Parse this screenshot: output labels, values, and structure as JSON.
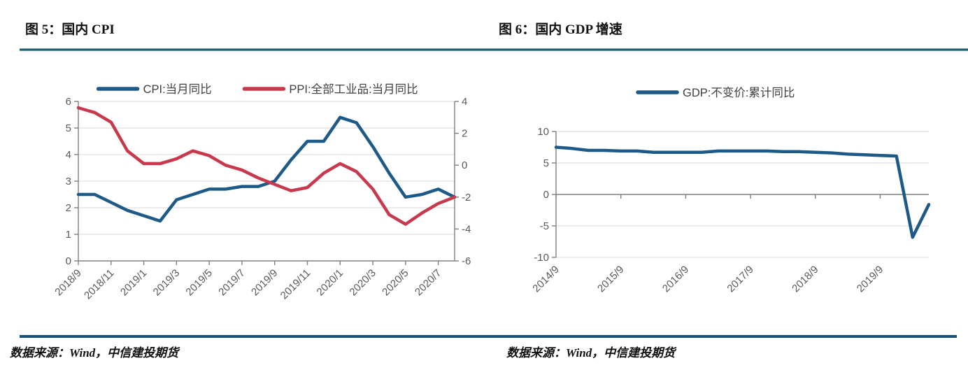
{
  "figures": [
    {
      "title": "图 5：国内 CPI",
      "source": "数据来源：Wind，中信建投期货"
    },
    {
      "title": "图 6：国内 GDP 增速",
      "source": "数据来源：Wind，中信建投期货"
    }
  ],
  "colors": {
    "cpi_line": "#1E5A87",
    "ppi_line": "#C8394E",
    "gdp_line": "#1E5A87",
    "gridline": "#D9D9D9",
    "axis": "#808080",
    "tick_text": "#595959",
    "legend_text": "#404040"
  },
  "chart_data": [
    {
      "type": "line",
      "title": "图 5：国内 CPI",
      "categories": [
        "2018/9",
        "2018/10",
        "2018/11",
        "2018/12",
        "2019/1",
        "2019/2",
        "2019/3",
        "2019/4",
        "2019/5",
        "2019/6",
        "2019/7",
        "2019/8",
        "2019/9",
        "2019/10",
        "2019/11",
        "2019/12",
        "2020/1",
        "2020/2",
        "2020/3",
        "2020/4",
        "2020/5",
        "2020/6",
        "2020/7",
        "2020/8"
      ],
      "x_tick_labels": [
        "2018/9",
        "2018/11",
        "2019/1",
        "2019/3",
        "2019/5",
        "2019/7",
        "2019/9",
        "2019/11",
        "2020/1",
        "2020/3",
        "2020/5",
        "2020/7"
      ],
      "series": [
        {
          "name": "CPI:当月同比",
          "axis": "left",
          "color": "#1E5A87",
          "values": [
            2.5,
            2.5,
            2.2,
            1.9,
            1.7,
            1.5,
            2.3,
            2.5,
            2.7,
            2.7,
            2.8,
            2.8,
            3.0,
            3.8,
            4.5,
            4.5,
            5.4,
            5.2,
            4.3,
            3.3,
            2.4,
            2.5,
            2.7,
            2.4
          ]
        },
        {
          "name": "PPI:全部工业品:当月同比",
          "axis": "right",
          "color": "#C8394E",
          "values": [
            3.6,
            3.3,
            2.7,
            0.9,
            0.1,
            0.1,
            0.4,
            0.9,
            0.6,
            0.0,
            -0.3,
            -0.8,
            -1.2,
            -1.6,
            -1.4,
            -0.5,
            0.1,
            -0.4,
            -1.5,
            -3.1,
            -3.7,
            -3.0,
            -2.4,
            -2.0
          ]
        }
      ],
      "left_axis": {
        "min": 0,
        "max": 6,
        "ticks": [
          0,
          1,
          2,
          3,
          4,
          5,
          6
        ]
      },
      "right_axis": {
        "min": -6,
        "max": 4,
        "ticks": [
          -6,
          -4,
          -2,
          0,
          2,
          4
        ]
      },
      "x_axis_at": 0,
      "grid": true,
      "legend_position": "top"
    },
    {
      "type": "line",
      "title": "图 6：国内 GDP 增速",
      "categories": [
        "2014/9",
        "2014/12",
        "2015/3",
        "2015/6",
        "2015/9",
        "2015/12",
        "2016/3",
        "2016/6",
        "2016/9",
        "2016/12",
        "2017/3",
        "2017/6",
        "2017/9",
        "2017/12",
        "2018/3",
        "2018/6",
        "2018/9",
        "2018/12",
        "2019/3",
        "2019/6",
        "2019/9",
        "2019/12",
        "2020/3",
        "2020/6"
      ],
      "x_tick_labels": [
        "2014/9",
        "2015/9",
        "2016/9",
        "2017/9",
        "2018/9",
        "2019/9"
      ],
      "series": [
        {
          "name": "GDP:不变价:累计同比",
          "axis": "left",
          "color": "#1E5A87",
          "values": [
            7.5,
            7.3,
            7.0,
            7.0,
            6.9,
            6.9,
            6.7,
            6.7,
            6.7,
            6.7,
            6.9,
            6.9,
            6.9,
            6.9,
            6.8,
            6.8,
            6.7,
            6.6,
            6.4,
            6.3,
            6.2,
            6.1,
            -6.8,
            -1.6
          ]
        }
      ],
      "left_axis": {
        "min": -10,
        "max": 10,
        "ticks": [
          -10,
          -5,
          0,
          5,
          10
        ]
      },
      "x_axis_at": 0,
      "grid": true,
      "legend_position": "top"
    }
  ]
}
